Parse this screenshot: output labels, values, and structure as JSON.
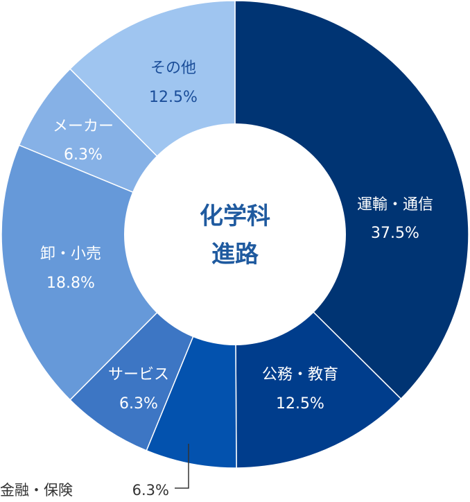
{
  "chart_data": {
    "type": "pie",
    "variant": "donut",
    "center_label": [
      "化学科",
      "進路"
    ],
    "slices": [
      {
        "label": "運輸・通信",
        "value": 37.5,
        "value_label": "37.5%",
        "color": "#003473"
      },
      {
        "label": "公務・教育",
        "value": 12.5,
        "value_label": "12.5%",
        "color": "#003d8c"
      },
      {
        "label": "金融・保険",
        "value": 6.3,
        "value_label": "6.3%",
        "color": "#0352ae"
      },
      {
        "label": "サービス",
        "value": 6.3,
        "value_label": "6.3%",
        "color": "#3d76c4"
      },
      {
        "label": "卸・小売",
        "value": 18.8,
        "value_label": "18.8%",
        "color": "#6699d9"
      },
      {
        "label": "メーカー",
        "value": 6.3,
        "value_label": "6.3%",
        "color": "#86b1e6"
      },
      {
        "label": "その他",
        "value": 12.5,
        "value_label": "12.5%",
        "color": "#9fc5f0"
      }
    ],
    "label_colors": {
      "on_dark": "#ffffff",
      "on_light": "#1a4d99",
      "center": "#1f5a9f",
      "outside": "#333333"
    }
  }
}
